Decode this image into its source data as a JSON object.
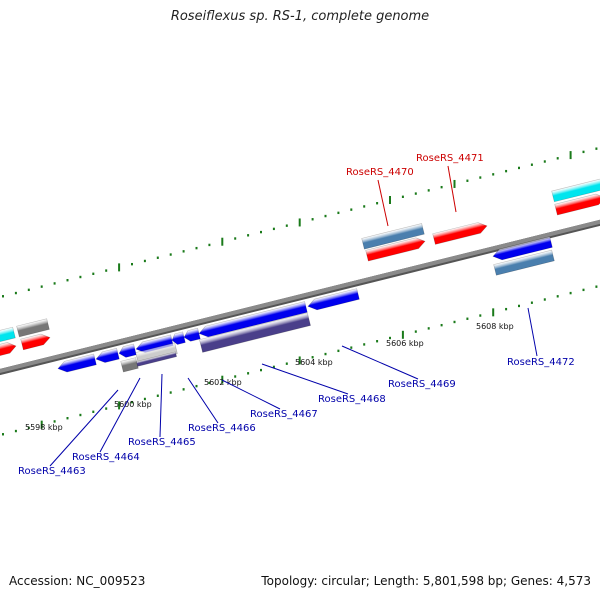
{
  "title": "Roseiflexus sp. RS-1, complete genome",
  "footer": {
    "accession_label": "Accession:",
    "accession": "NC_009523",
    "topology_line": "Topology: circular; Length: 5,801,598 bp; Genes: 4,573"
  },
  "scale": {
    "unit": "kbp",
    "labels": [
      {
        "kbp": 5598,
        "text": "5598 kbp"
      },
      {
        "kbp": 5600,
        "text": "5600 kbp"
      },
      {
        "kbp": 5602,
        "text": "5602 kbp"
      },
      {
        "kbp": 5604,
        "text": "5604 kbp"
      },
      {
        "kbp": 5606,
        "text": "5606 kbp"
      },
      {
        "kbp": 5608,
        "text": "5608 kbp"
      }
    ]
  },
  "colors": {
    "backbone": "#8a8a8a",
    "tick": "#1a7a1a",
    "forward_cds": "#ff0000",
    "forward_gene": "#4a7fae",
    "reverse_cds": "#0000ee",
    "reverse_gene_dark": "#4a3f8a",
    "reverse_gene_gray": "#777777",
    "other_cds": "#00e5ee",
    "forward_label": "#cc0000",
    "reverse_label": "#0000aa"
  },
  "genes": [
    {
      "id": "RoseRS_4463",
      "label": "RoseRS_4463",
      "strand": "reverse"
    },
    {
      "id": "RoseRS_4464",
      "label": "RoseRS_4464",
      "strand": "reverse"
    },
    {
      "id": "RoseRS_4465",
      "label": "RoseRS_4465",
      "strand": "reverse"
    },
    {
      "id": "RoseRS_4466",
      "label": "RoseRS_4466",
      "strand": "reverse"
    },
    {
      "id": "RoseRS_4467",
      "label": "RoseRS_4467",
      "strand": "reverse"
    },
    {
      "id": "RoseRS_4468",
      "label": "RoseRS_4468",
      "strand": "reverse"
    },
    {
      "id": "RoseRS_4469",
      "label": "RoseRS_4469",
      "strand": "reverse"
    },
    {
      "id": "RoseRS_4470",
      "label": "RoseRS_4470",
      "strand": "forward"
    },
    {
      "id": "RoseRS_4471",
      "label": "RoseRS_4471",
      "strand": "forward"
    },
    {
      "id": "RoseRS_4472",
      "label": "RoseRS_4472",
      "strand": "reverse"
    }
  ]
}
